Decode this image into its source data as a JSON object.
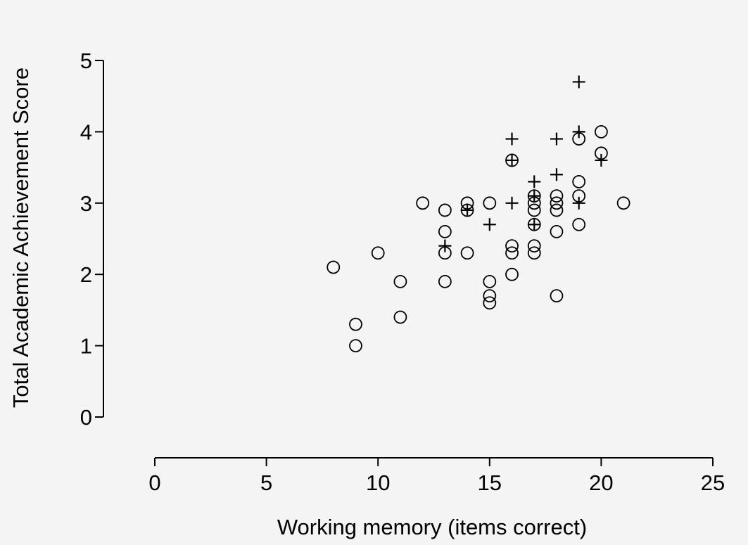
{
  "chart_data": {
    "type": "scatter",
    "title": "",
    "xlabel": "Working memory (items correct)",
    "ylabel": "Total Academic Achievement Score",
    "xlim": [
      0,
      25
    ],
    "ylim": [
      0,
      5
    ],
    "xticks": [
      0,
      5,
      10,
      15,
      20,
      25
    ],
    "yticks": [
      0,
      1,
      2,
      3,
      4,
      5
    ],
    "grid": false,
    "series": [
      {
        "marker": "circle",
        "points": [
          [
            8,
            2.1
          ],
          [
            9,
            1.3
          ],
          [
            9,
            1.0
          ],
          [
            10,
            2.3
          ],
          [
            11,
            1.9
          ],
          [
            11,
            1.4
          ],
          [
            12,
            3.0
          ],
          [
            13,
            2.9
          ],
          [
            13,
            2.6
          ],
          [
            13,
            2.3
          ],
          [
            13,
            1.9
          ],
          [
            14,
            3.0
          ],
          [
            14,
            2.9
          ],
          [
            14,
            2.3
          ],
          [
            15,
            3.0
          ],
          [
            15,
            1.9
          ],
          [
            15,
            1.7
          ],
          [
            15,
            1.6
          ],
          [
            16,
            3.6
          ],
          [
            16,
            2.4
          ],
          [
            16,
            2.3
          ],
          [
            16,
            2.0
          ],
          [
            17,
            3.1
          ],
          [
            17,
            3.0
          ],
          [
            17,
            2.9
          ],
          [
            17,
            2.7
          ],
          [
            17,
            2.4
          ],
          [
            17,
            2.3
          ],
          [
            18,
            3.1
          ],
          [
            18,
            3.0
          ],
          [
            18,
            2.9
          ],
          [
            18,
            2.6
          ],
          [
            18,
            1.7
          ],
          [
            19,
            3.9
          ],
          [
            19,
            3.3
          ],
          [
            19,
            3.1
          ],
          [
            19,
            2.7
          ],
          [
            20,
            4.0
          ],
          [
            20,
            3.7
          ],
          [
            21,
            3.0
          ]
        ]
      },
      {
        "marker": "plus",
        "points": [
          [
            13,
            2.4
          ],
          [
            14,
            2.9
          ],
          [
            15,
            2.7
          ],
          [
            16,
            3.9
          ],
          [
            16,
            3.6
          ],
          [
            16,
            3.0
          ],
          [
            17,
            3.3
          ],
          [
            17,
            3.1
          ],
          [
            17,
            2.7
          ],
          [
            18,
            3.9
          ],
          [
            18,
            3.4
          ],
          [
            19,
            4.7
          ],
          [
            19,
            4.0
          ],
          [
            19,
            3.0
          ],
          [
            20,
            3.6
          ]
        ]
      }
    ]
  }
}
